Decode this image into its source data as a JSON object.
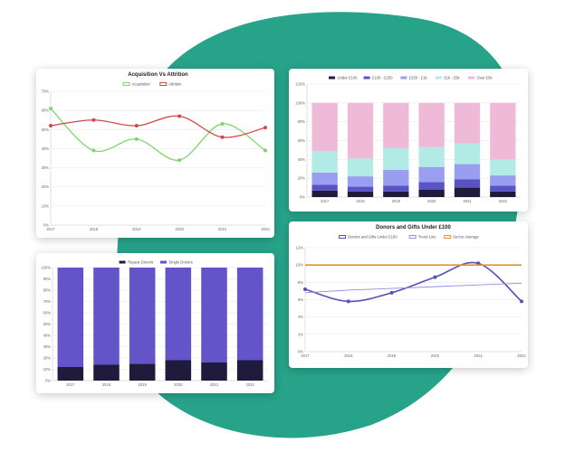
{
  "colors": {
    "background_blob": "#27a38a"
  },
  "chart_data": [
    {
      "id": "acq",
      "type": "line",
      "title": "Acquisition Vs Attrition",
      "categories": [
        "2017",
        "2018",
        "2019",
        "2020",
        "2021",
        "2022"
      ],
      "ylim": [
        0,
        70
      ],
      "yticks": [
        "0%",
        "10%",
        "20%",
        "30%",
        "40%",
        "50%",
        "60%",
        "70%"
      ],
      "grid": true,
      "legend": "top-center",
      "series": [
        {
          "name": "Acquisition",
          "color": "#7ed66b",
          "values": [
            61,
            39,
            45,
            34,
            53,
            39
          ]
        },
        {
          "name": "Attrition",
          "color": "#d24848",
          "values": [
            52,
            55,
            52,
            57,
            46,
            51
          ]
        }
      ]
    },
    {
      "id": "gifts",
      "type": "bar",
      "stacked": true,
      "title": "",
      "categories": [
        "2017",
        "2018",
        "2019",
        "2020",
        "2021",
        "2022"
      ],
      "ylim": [
        0,
        120
      ],
      "yticks": [
        "0%",
        "20%",
        "40%",
        "60%",
        "80%",
        "100%",
        "120%"
      ],
      "grid": true,
      "legend": "top-center",
      "series": [
        {
          "name": "Under £100",
          "color": "#1f1b3d",
          "values": [
            7,
            6,
            6,
            8,
            10,
            6
          ]
        },
        {
          "name": "£100 - £250",
          "color": "#5a53c5",
          "values": [
            6,
            5,
            6,
            8,
            9,
            6
          ]
        },
        {
          "name": "£250 - £1k",
          "color": "#9a9ef0",
          "values": [
            13,
            11,
            17,
            16,
            16,
            11
          ]
        },
        {
          "name": "£1k - £5k",
          "color": "#b2ebe5",
          "values": [
            23,
            19,
            23,
            21,
            22,
            17
          ]
        },
        {
          "name": "Over £5k",
          "color": "#efbad8",
          "values": [
            51,
            59,
            48,
            47,
            43,
            60
          ]
        }
      ]
    },
    {
      "id": "donors",
      "type": "bar",
      "stacked": true,
      "title": "",
      "categories": [
        "2017",
        "2018",
        "2019",
        "2020",
        "2021",
        "2022"
      ],
      "ylim": [
        0,
        100
      ],
      "yticks": [
        "0%",
        "10%",
        "20%",
        "30%",
        "40%",
        "50%",
        "60%",
        "70%",
        "80%",
        "90%",
        "100%"
      ],
      "grid": true,
      "legend": "top-center",
      "series": [
        {
          "name": "Repeat Donors",
          "color": "#1f1b3d",
          "values": [
            12,
            14,
            15,
            18,
            16,
            18
          ]
        },
        {
          "name": "Single Donors",
          "color": "#6355c9",
          "values": [
            88,
            86,
            85,
            82,
            84,
            82
          ]
        }
      ]
    },
    {
      "id": "under100",
      "type": "line",
      "title": "Donors and Gifts Under £100",
      "categories": [
        "2017",
        "2018",
        "2019",
        "2020",
        "2021",
        "2022"
      ],
      "ylim": [
        0,
        12
      ],
      "yticks": [
        "0%",
        "2%",
        "4%",
        "6%",
        "8%",
        "10%",
        "12%"
      ],
      "grid": true,
      "legend": "top-center",
      "series": [
        {
          "name": "Donors and Gifts Under £100",
          "color": "#5a4fb5",
          "values": [
            7.2,
            5.8,
            6.8,
            8.6,
            10.2,
            5.8
          ]
        },
        {
          "name": "Trend Line",
          "color": "#8a92e0",
          "values": [
            6.8,
            7.1,
            7.3,
            7.5,
            7.7,
            7.9
          ]
        },
        {
          "name": "Sector Average",
          "color": "#e8912d",
          "values": [
            10,
            10,
            10,
            10,
            10,
            10
          ]
        }
      ]
    }
  ]
}
